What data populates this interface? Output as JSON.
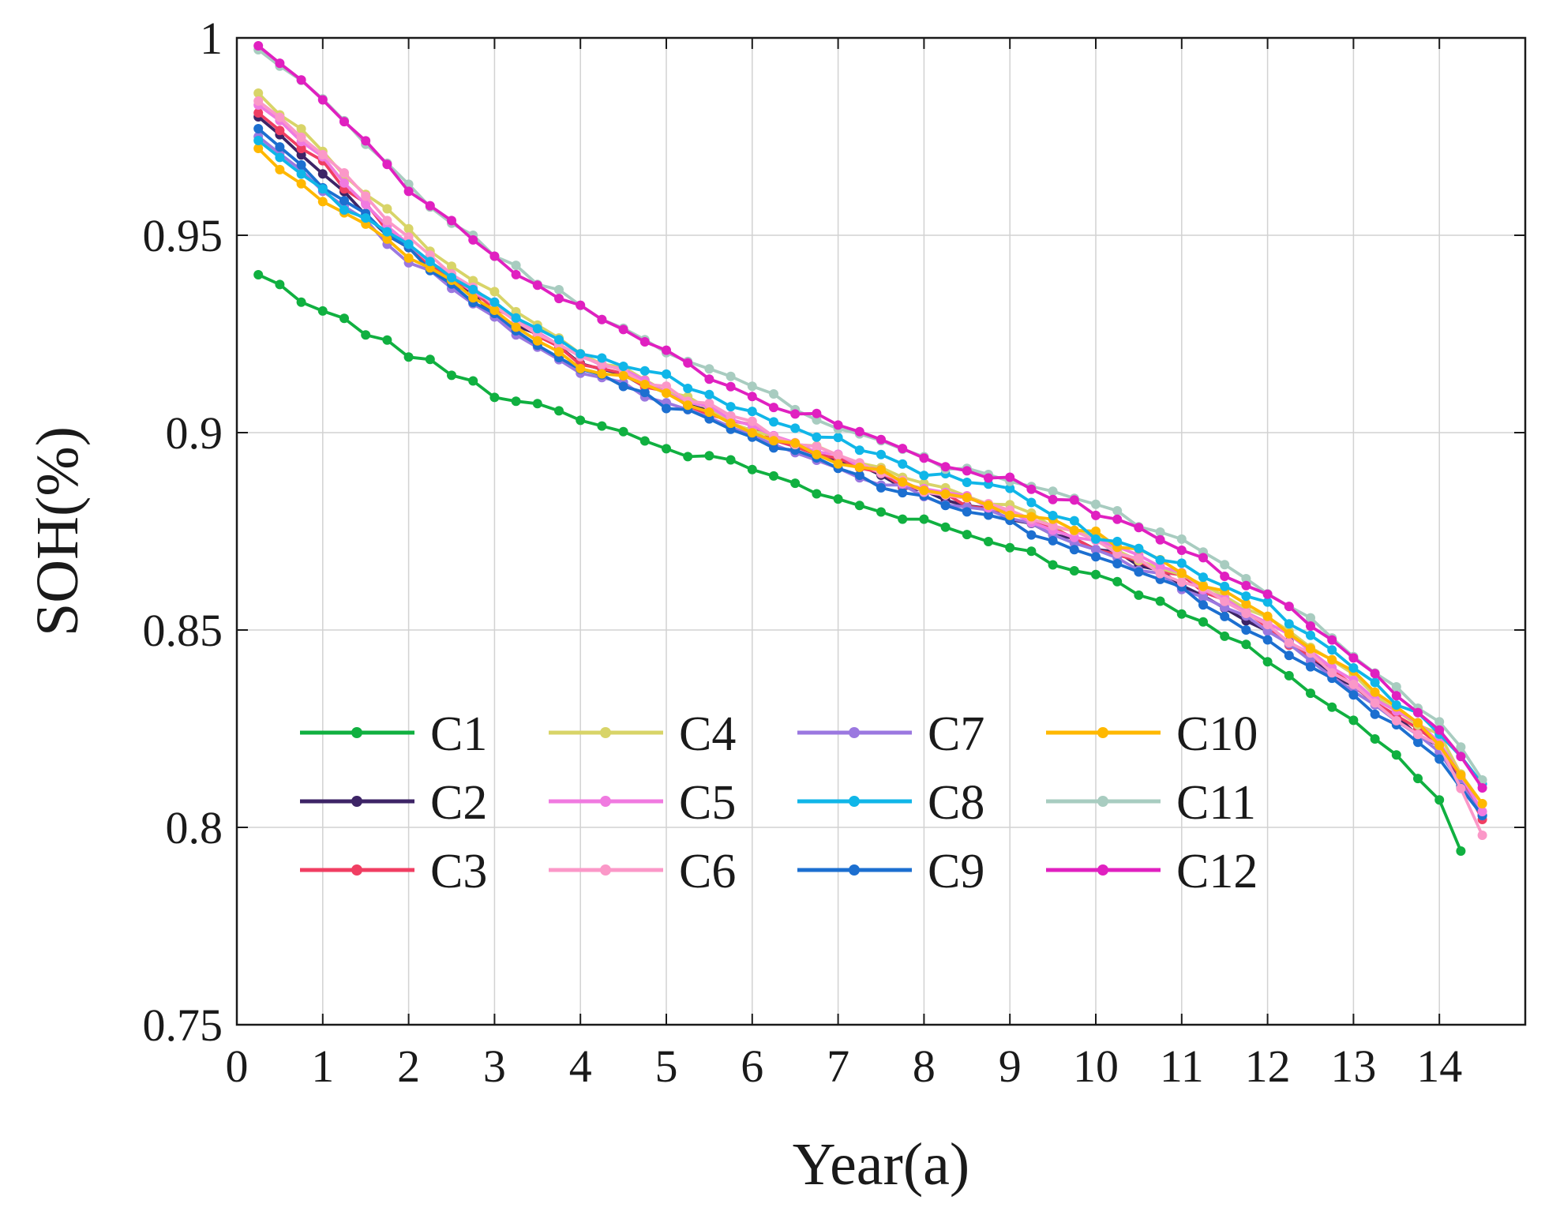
{
  "chart_data": {
    "type": "line",
    "title": "",
    "xlabel": "Year(a)",
    "ylabel": "SOH(%)",
    "xlim": [
      0,
      15
    ],
    "ylim": [
      0.75,
      1.0
    ],
    "xticks": [
      0,
      1,
      2,
      3,
      4,
      5,
      6,
      7,
      8,
      9,
      10,
      11,
      12,
      13,
      14
    ],
    "xtick_labels": [
      "0",
      "1",
      "2",
      "3",
      "4",
      "5",
      "6",
      "7",
      "8",
      "9",
      "10",
      "11",
      "12",
      "13",
      "14"
    ],
    "yticks": [
      0.75,
      0.8,
      0.85,
      0.9,
      0.95,
      1.0
    ],
    "ytick_labels": [
      "0.75",
      "0.8",
      "0.85",
      "0.9",
      "0.95",
      "1"
    ],
    "grid": true,
    "legend_position": "lower-left",
    "legend_columns": 4,
    "x_knots": [
      0.25,
      1,
      2,
      3,
      4,
      5,
      6,
      7,
      8,
      9,
      10,
      11,
      12,
      13,
      14,
      14.5
    ],
    "point_step": 0.25,
    "series": [
      {
        "name": "C1",
        "color": "#10b040",
        "values": [
          0.94,
          0.931,
          0.92,
          0.91,
          0.904,
          0.896,
          0.891,
          0.883,
          0.877,
          0.871,
          0.864,
          0.855,
          0.843,
          0.827,
          0.808
        ],
        "end_x": 14.25,
        "end_value": 0.794
      },
      {
        "name": "C2",
        "color": "#3d2466",
        "values": [
          0.98,
          0.966,
          0.946,
          0.93,
          0.918,
          0.91,
          0.9,
          0.893,
          0.885,
          0.879,
          0.871,
          0.862,
          0.85,
          0.835,
          0.82,
          0.803
        ]
      },
      {
        "name": "C3",
        "color": "#f03e62",
        "values": [
          0.981,
          0.968,
          0.947,
          0.931,
          0.918,
          0.91,
          0.901,
          0.893,
          0.885,
          0.879,
          0.871,
          0.863,
          0.851,
          0.836,
          0.821,
          0.802
        ]
      },
      {
        "name": "C4",
        "color": "#d8d468",
        "values": [
          0.986,
          0.971,
          0.951,
          0.935,
          0.92,
          0.911,
          0.901,
          0.894,
          0.887,
          0.881,
          0.873,
          0.864,
          0.853,
          0.838,
          0.823,
          0.806
        ]
      },
      {
        "name": "C5",
        "color": "#f07ae0",
        "values": [
          0.983,
          0.969,
          0.948,
          0.932,
          0.919,
          0.911,
          0.902,
          0.894,
          0.886,
          0.88,
          0.872,
          0.864,
          0.852,
          0.837,
          0.822,
          0.804
        ]
      },
      {
        "name": "C6",
        "color": "#fb98c8",
        "values": [
          0.984,
          0.97,
          0.949,
          0.932,
          0.919,
          0.911,
          0.902,
          0.894,
          0.886,
          0.88,
          0.872,
          0.863,
          0.851,
          0.836,
          0.82,
          0.798
        ]
      },
      {
        "name": "C7",
        "color": "#9b78e0",
        "values": [
          0.975,
          0.962,
          0.944,
          0.929,
          0.916,
          0.908,
          0.9,
          0.891,
          0.884,
          0.878,
          0.87,
          0.861,
          0.85,
          0.835,
          0.82,
          0.803
        ]
      },
      {
        "name": "C8",
        "color": "#10b6e8",
        "values": [
          0.974,
          0.961,
          0.947,
          0.932,
          0.921,
          0.914,
          0.905,
          0.898,
          0.89,
          0.885,
          0.874,
          0.866,
          0.856,
          0.84,
          0.824,
          0.811
        ]
      },
      {
        "name": "C9",
        "color": "#1c6fd0",
        "values": [
          0.977,
          0.963,
          0.946,
          0.93,
          0.916,
          0.907,
          0.899,
          0.891,
          0.883,
          0.877,
          0.869,
          0.86,
          0.848,
          0.833,
          0.818,
          0.803
        ]
      },
      {
        "name": "C10",
        "color": "#ffb800",
        "values": [
          0.972,
          0.959,
          0.945,
          0.931,
          0.917,
          0.91,
          0.901,
          0.893,
          0.886,
          0.88,
          0.874,
          0.865,
          0.853,
          0.839,
          0.821,
          0.806
        ]
      },
      {
        "name": "C11",
        "color": "#a8ccc0",
        "values": [
          0.997,
          0.984,
          0.962,
          0.945,
          0.932,
          0.921,
          0.911,
          0.902,
          0.893,
          0.888,
          0.882,
          0.872,
          0.86,
          0.844,
          0.827,
          0.812
        ]
      },
      {
        "name": "C12",
        "color": "#e020c0",
        "values": [
          0.998,
          0.984,
          0.962,
          0.944,
          0.932,
          0.92,
          0.909,
          0.902,
          0.893,
          0.888,
          0.88,
          0.87,
          0.859,
          0.843,
          0.824,
          0.81
        ]
      }
    ]
  }
}
